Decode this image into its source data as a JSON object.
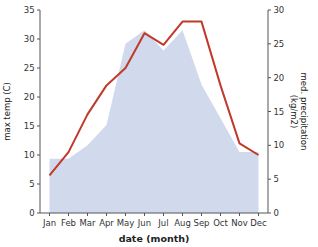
{
  "chart_data": {
    "type": "line",
    "categories": [
      "Jan",
      "Feb",
      "Mar",
      "Apr",
      "May",
      "Jun",
      "Jul",
      "Aug",
      "Sep",
      "Oct",
      "Nov",
      "Dec"
    ],
    "series": [
      {
        "type": "area",
        "axis": "y2",
        "color": "#c5cfe8",
        "values": [
          8,
          8,
          10,
          13,
          25,
          27,
          24,
          27,
          19,
          14,
          9,
          9
        ]
      },
      {
        "type": "line",
        "color": "#c0392b",
        "values": [
          6.5,
          10.5,
          17.0,
          22.0,
          25.0,
          31.0,
          29.0,
          33.0,
          33.0,
          22.0,
          12.0,
          10.0
        ]
      }
    ],
    "xlabel": "date (month)",
    "ylabel": "max temp (C)",
    "y2label": "med. precipitation\n(kg/m2)",
    "ylim": [
      0,
      35
    ],
    "yticks": [
      0,
      5,
      10,
      15,
      20,
      25,
      30,
      35
    ],
    "y2lim": [
      0,
      30
    ],
    "y2ticks": [
      0,
      5,
      10,
      15,
      20,
      25,
      30
    ],
    "grid": false
  }
}
